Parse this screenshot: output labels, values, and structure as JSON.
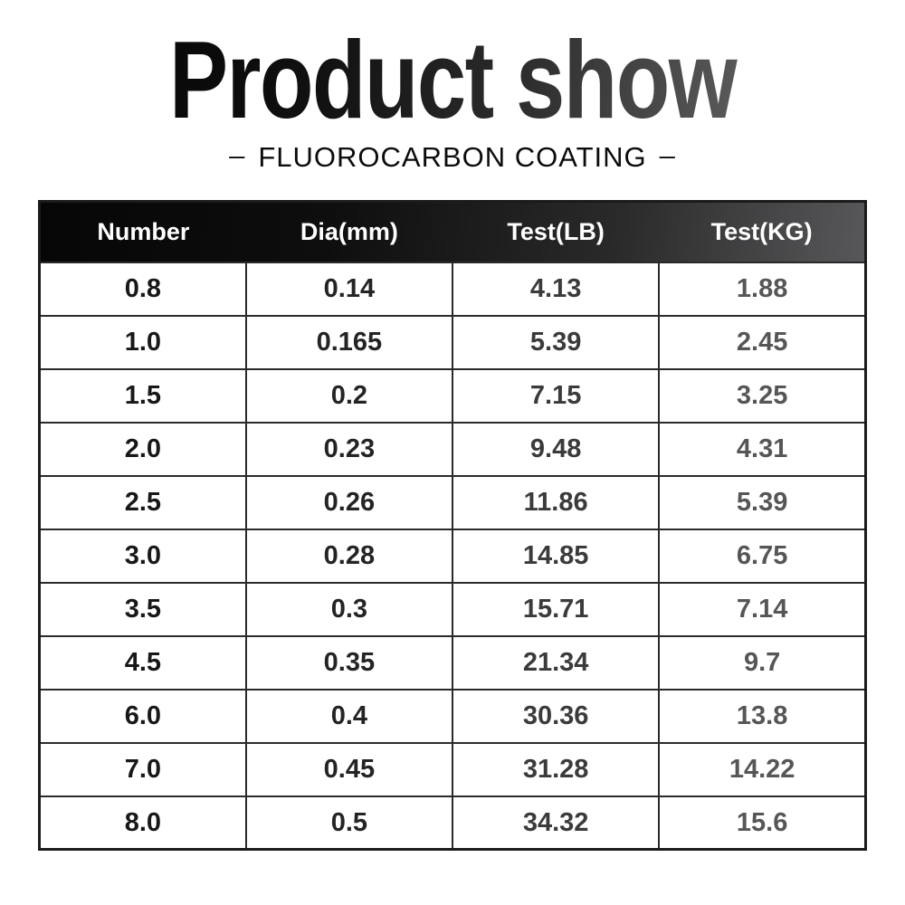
{
  "page": {
    "title": "Product show",
    "subtitle": "FLUOROCARBON COATING",
    "subtitle_dash": "–"
  },
  "colors": {
    "background": "#ffffff",
    "title_gradient_start": "#040404",
    "title_gradient_end": "#6a6a6c",
    "header_gradient_start": "#060606",
    "header_gradient_end": "#58585a",
    "header_text": "#ffffff",
    "table_border": "#1b1b1b",
    "cell_border": "#2a2a2a"
  },
  "table": {
    "headers": [
      "Number",
      "Dia(mm)",
      "Test(LB)",
      "Test(KG)"
    ],
    "rows": [
      [
        "0.8",
        "0.14",
        "4.13",
        "1.88"
      ],
      [
        "1.0",
        "0.165",
        "5.39",
        "2.45"
      ],
      [
        "1.5",
        "0.2",
        "7.15",
        "3.25"
      ],
      [
        "2.0",
        "0.23",
        "9.48",
        "4.31"
      ],
      [
        "2.5",
        "0.26",
        "11.86",
        "5.39"
      ],
      [
        "3.0",
        "0.28",
        "14.85",
        "6.75"
      ],
      [
        "3.5",
        "0.3",
        "15.71",
        "7.14"
      ],
      [
        "4.5",
        "0.35",
        "21.34",
        "9.7"
      ],
      [
        "6.0",
        "0.4",
        "30.36",
        "13.8"
      ],
      [
        "7.0",
        "0.45",
        "31.28",
        "14.22"
      ],
      [
        "8.0",
        "0.5",
        "34.32",
        "15.6"
      ]
    ]
  }
}
